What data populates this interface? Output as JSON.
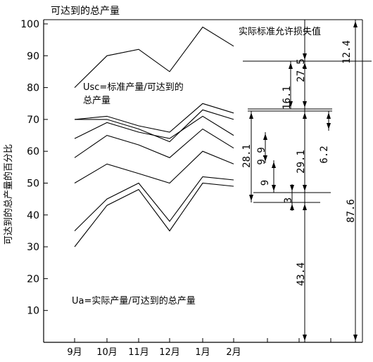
{
  "chart_data": {
    "type": "line",
    "title": "可达到的总产量",
    "ylabel": "可达到的总产量的百分比",
    "ylim": [
      0,
      100
    ],
    "yticks": [
      10,
      20,
      30,
      40,
      50,
      60,
      70,
      80,
      90,
      100
    ],
    "categories": [
      "9月",
      "10月",
      "11月",
      "12月",
      "1月",
      "2月"
    ],
    "series": [
      {
        "values": [
          80,
          90,
          92,
          85,
          99,
          93
        ]
      },
      {
        "values": [
          70,
          71,
          68,
          66,
          75,
          72
        ]
      },
      {
        "values": [
          70,
          70,
          67,
          63,
          73,
          70
        ]
      },
      {
        "values": [
          64,
          69,
          66,
          64,
          71,
          65
        ]
      },
      {
        "values": [
          58,
          65,
          62,
          58,
          67,
          61
        ]
      },
      {
        "values": [
          50,
          56,
          53,
          50,
          60,
          56
        ]
      },
      {
        "values": [
          35,
          45,
          50,
          38,
          52,
          51
        ]
      },
      {
        "values": [
          30,
          43,
          48,
          35,
          50,
          49
        ]
      }
    ],
    "annotations": [
      "Usc=标准产量/可达到的总产量",
      "Ua=实际产量/可达到的总产量",
      "实际标准允许损失值"
    ],
    "dimension_labels": [
      "12.4",
      "27.5",
      "16.1",
      "29.1",
      "6.2",
      "28.1",
      "9.9",
      "9",
      "3",
      "43.4",
      "87.6"
    ]
  }
}
